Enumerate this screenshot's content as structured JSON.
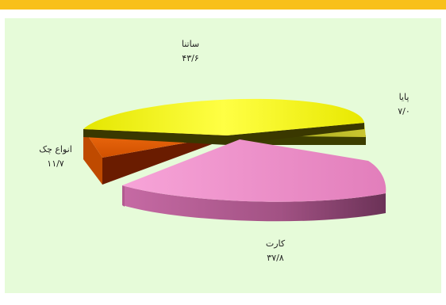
{
  "chart_data": {
    "type": "pie",
    "style": "3d-exploded",
    "slices": [
      {
        "label": "ساتنا",
        "value": "۴۳/۶",
        "value_num": 43.6,
        "color": "#f2f21c"
      },
      {
        "label": "پایا",
        "value": "۷/۰",
        "value_num": 7.0,
        "color": "#b0b218"
      },
      {
        "label": "کارت",
        "value": "۳۷/۸",
        "value_num": 37.8,
        "color": "#ee92ca"
      },
      {
        "label": "انواع چک",
        "value": "۱۱/۷",
        "value_num": 11.7,
        "color": "#f06a0e"
      }
    ],
    "colors": {
      "background": "#e6fbd9",
      "accent_bar": "#f8c01a"
    }
  }
}
